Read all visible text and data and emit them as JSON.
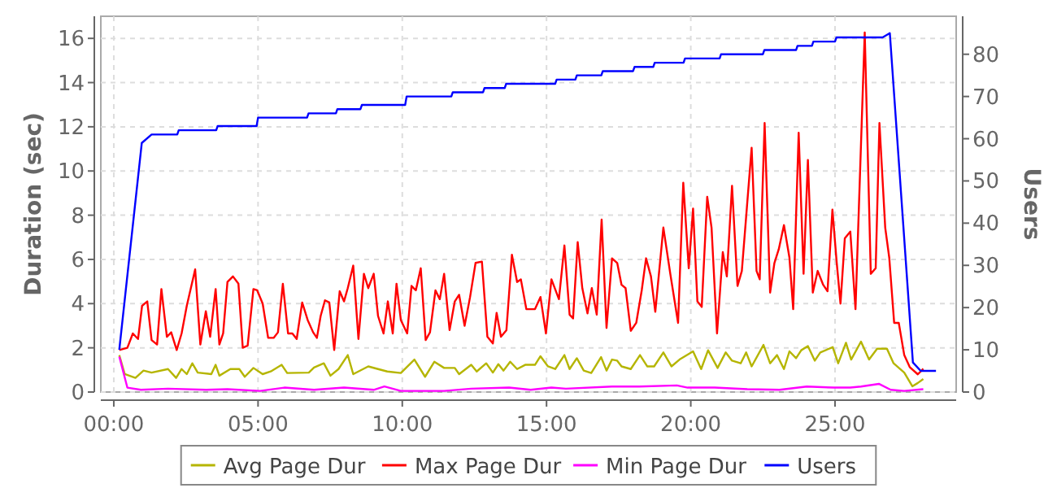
{
  "chart_data": {
    "type": "line",
    "xlabel": null,
    "ylabel": "Duration (sec)",
    "y2label": "Users",
    "xlim": [
      -0.45,
      29.2
    ],
    "xticks": [
      {
        "value": 0,
        "label": "00:00"
      },
      {
        "value": 5,
        "label": "05:00"
      },
      {
        "value": 10,
        "label": "10:00"
      },
      {
        "value": 15,
        "label": "15:00"
      },
      {
        "value": 20,
        "label": "20:00"
      },
      {
        "value": 25,
        "label": "25:00"
      }
    ],
    "ylim": [
      0,
      17
    ],
    "yticks": [
      0,
      2,
      4,
      6,
      8,
      10,
      12,
      14,
      16
    ],
    "y2lim": [
      0,
      89
    ],
    "y2ticks": [
      0,
      10,
      20,
      30,
      40,
      50,
      60,
      70,
      80
    ],
    "grid": true,
    "legend": "bottom",
    "line_style": "solid",
    "series": [
      {
        "name": "Avg Page Dur",
        "color": "#b5b500",
        "x": [
          0.19,
          0.38,
          0.75,
          1.03,
          1.31,
          1.88,
          2.16,
          2.35,
          2.53,
          2.72,
          2.91,
          3.38,
          3.53,
          3.66,
          4.04,
          4.35,
          4.54,
          4.84,
          5.16,
          5.44,
          5.82,
          6.01,
          6.76,
          6.94,
          7.28,
          7.51,
          7.79,
          8.11,
          8.3,
          8.82,
          9.16,
          9.48,
          9.95,
          10.42,
          10.79,
          11.11,
          11.45,
          11.82,
          11.97,
          12.39,
          12.58,
          12.91,
          13.14,
          13.33,
          13.51,
          13.74,
          13.98,
          14.26,
          14.6,
          14.79,
          15.05,
          15.3,
          15.62,
          15.8,
          16.05,
          16.29,
          16.55,
          16.89,
          17.08,
          17.27,
          17.45,
          17.6,
          17.92,
          18.24,
          18.49,
          18.73,
          19.05,
          19.33,
          19.61,
          20.08,
          20.36,
          20.6,
          20.93,
          21.21,
          21.43,
          21.73,
          21.92,
          22.11,
          22.52,
          22.75,
          22.99,
          23.23,
          23.42,
          23.65,
          23.83,
          24.06,
          24.3,
          24.49,
          24.92,
          25.11,
          25.38,
          25.56,
          25.9,
          26.18,
          26.46,
          26.8,
          27.03,
          27.4,
          27.68,
          27.87,
          28.06
        ],
        "values": [
          1.67,
          0.81,
          0.64,
          0.97,
          0.88,
          1.04,
          0.64,
          1.04,
          0.81,
          1.3,
          0.88,
          0.81,
          1.23,
          0.74,
          1.04,
          1.04,
          0.69,
          1.09,
          0.81,
          0.93,
          1.23,
          0.86,
          0.88,
          1.11,
          1.3,
          0.74,
          1.04,
          1.67,
          0.81,
          1.16,
          1.04,
          0.93,
          0.86,
          1.47,
          0.69,
          1.37,
          1.09,
          1.09,
          0.81,
          1.23,
          0.93,
          1.3,
          0.88,
          1.26,
          0.97,
          1.37,
          1.04,
          1.23,
          1.23,
          1.62,
          1.16,
          1.04,
          1.67,
          1.04,
          1.53,
          0.97,
          0.86,
          1.58,
          0.97,
          1.47,
          1.42,
          1.16,
          1.04,
          1.67,
          1.16,
          1.16,
          1.79,
          1.16,
          1.47,
          1.84,
          1.04,
          1.89,
          1.09,
          1.79,
          1.42,
          1.3,
          1.79,
          1.16,
          2.13,
          1.3,
          1.67,
          1.04,
          1.84,
          1.53,
          1.89,
          2.08,
          1.42,
          1.79,
          2.03,
          1.3,
          2.23,
          1.47,
          2.28,
          1.47,
          1.96,
          1.96,
          1.3,
          0.88,
          0.26,
          0.41,
          0.59
        ]
      },
      {
        "name": "Max Page Dur",
        "color": "#ff0000",
        "x": [
          0.19,
          0.47,
          0.66,
          0.84,
          0.98,
          1.16,
          1.31,
          1.5,
          1.65,
          1.84,
          1.99,
          2.18,
          2.35,
          2.53,
          2.82,
          3.0,
          3.19,
          3.34,
          3.53,
          3.66,
          3.79,
          3.94,
          4.13,
          4.32,
          4.47,
          4.64,
          4.84,
          4.97,
          5.16,
          5.35,
          5.54,
          5.69,
          5.86,
          6.04,
          6.19,
          6.34,
          6.53,
          6.72,
          6.91,
          7.04,
          7.17,
          7.32,
          7.47,
          7.64,
          7.83,
          7.98,
          8.11,
          8.3,
          8.48,
          8.67,
          8.82,
          9.01,
          9.16,
          9.35,
          9.5,
          9.67,
          9.8,
          9.95,
          10.17,
          10.32,
          10.47,
          10.64,
          10.81,
          10.96,
          11.15,
          11.3,
          11.45,
          11.64,
          11.82,
          11.97,
          12.16,
          12.35,
          12.54,
          12.76,
          12.95,
          13.14,
          13.27,
          13.42,
          13.61,
          13.8,
          13.98,
          14.11,
          14.3,
          14.6,
          14.79,
          14.98,
          15.17,
          15.43,
          15.62,
          15.8,
          15.92,
          16.08,
          16.24,
          16.42,
          16.57,
          16.74,
          16.91,
          17.08,
          17.27,
          17.45,
          17.6,
          17.74,
          17.92,
          18.11,
          18.3,
          18.45,
          18.62,
          18.77,
          19.05,
          19.29,
          19.56,
          19.74,
          19.93,
          20.08,
          20.23,
          20.38,
          20.57,
          20.72,
          20.91,
          21.11,
          21.25,
          21.43,
          21.62,
          21.77,
          22.11,
          22.28,
          22.39,
          22.56,
          22.75,
          22.9,
          23.05,
          23.23,
          23.42,
          23.55,
          23.74,
          23.91,
          24.06,
          24.23,
          24.4,
          24.59,
          24.74,
          24.91,
          25.06,
          25.19,
          25.34,
          25.53,
          25.71,
          26.03,
          26.24,
          26.41,
          26.54,
          26.74,
          26.88,
          27.05,
          27.21,
          27.4,
          27.59,
          27.87,
          28.06
        ],
        "values": [
          1.9,
          2.0,
          2.65,
          2.4,
          3.9,
          4.1,
          2.35,
          2.15,
          4.66,
          2.5,
          2.7,
          1.9,
          2.65,
          3.9,
          5.55,
          2.15,
          3.65,
          2.5,
          4.66,
          2.15,
          2.65,
          4.98,
          5.23,
          4.9,
          2.0,
          2.1,
          4.66,
          4.6,
          4.0,
          2.45,
          2.45,
          2.7,
          4.9,
          2.65,
          2.65,
          2.4,
          4.05,
          3.26,
          2.7,
          2.45,
          3.44,
          4.15,
          4.05,
          1.9,
          4.56,
          4.1,
          4.7,
          5.72,
          2.4,
          5.35,
          4.7,
          5.35,
          3.44,
          2.65,
          4.1,
          2.65,
          4.9,
          3.26,
          2.65,
          4.8,
          4.6,
          5.6,
          2.35,
          2.7,
          4.6,
          4.2,
          5.35,
          2.8,
          4.1,
          4.4,
          3.0,
          4.3,
          5.84,
          5.9,
          2.5,
          2.2,
          3.58,
          2.5,
          2.8,
          6.21,
          4.98,
          5.1,
          3.75,
          3.75,
          4.3,
          2.65,
          5.1,
          4.2,
          6.63,
          3.5,
          3.33,
          6.78,
          4.7,
          3.56,
          4.7,
          3.5,
          7.8,
          2.9,
          6.05,
          5.84,
          4.85,
          4.7,
          2.77,
          3.13,
          4.6,
          6.05,
          5.23,
          3.63,
          7.44,
          5.35,
          3.13,
          9.47,
          5.6,
          8.3,
          4.1,
          3.85,
          8.83,
          7.44,
          2.65,
          6.33,
          5.23,
          9.33,
          4.8,
          5.48,
          11.05,
          5.48,
          5.1,
          12.17,
          4.5,
          5.84,
          6.46,
          7.55,
          6.08,
          3.75,
          11.73,
          5.35,
          10.5,
          4.5,
          5.48,
          4.85,
          4.56,
          8.25,
          5.84,
          4.0,
          6.95,
          7.26,
          3.75,
          16.27,
          5.35,
          5.6,
          12.17,
          7.44,
          6.08,
          3.13,
          3.13,
          1.67,
          1.13,
          0.8,
          1.05
        ]
      },
      {
        "name": "Min Page Dur",
        "color": "#ff00ff",
        "x": [
          0.19,
          0.47,
          0.94,
          1.88,
          3.19,
          3.94,
          5.07,
          5.91,
          6.94,
          7.98,
          9.01,
          9.38,
          9.95,
          11.45,
          12.39,
          13.7,
          14.45,
          15.17,
          15.67,
          17.27,
          18.21,
          19.52,
          19.89,
          20.83,
          21.96,
          23.08,
          24.02,
          24.96,
          25.53,
          25.9,
          26.52,
          26.93,
          27.4,
          28.06
        ],
        "values": [
          1.6,
          0.2,
          0.1,
          0.15,
          0.1,
          0.13,
          0.05,
          0.2,
          0.1,
          0.2,
          0.1,
          0.25,
          0.05,
          0.05,
          0.15,
          0.2,
          0.1,
          0.2,
          0.15,
          0.25,
          0.25,
          0.3,
          0.2,
          0.2,
          0.13,
          0.1,
          0.25,
          0.2,
          0.2,
          0.25,
          0.37,
          0.1,
          0.05,
          0.13
        ]
      },
      {
        "name": "Users",
        "color": "#0000ff",
        "axis": "y2",
        "x": [
          0.19,
          0.97,
          1.31,
          2.2,
          2.25,
          3.55,
          3.6,
          4.95,
          5.0,
          6.7,
          6.75,
          7.7,
          7.75,
          8.55,
          8.6,
          10.1,
          10.15,
          11.7,
          11.75,
          12.8,
          12.85,
          13.55,
          13.6,
          15.3,
          15.35,
          16.0,
          16.05,
          16.9,
          16.95,
          18.0,
          18.05,
          18.7,
          18.75,
          19.75,
          19.8,
          21.0,
          21.05,
          22.5,
          22.55,
          23.65,
          23.7,
          24.2,
          24.25,
          25.0,
          25.05,
          26.65,
          26.9,
          27.7,
          27.97,
          28.5
        ],
        "values": [
          10,
          59,
          61,
          61,
          62,
          62,
          63,
          63,
          65,
          65,
          66,
          66,
          67,
          67,
          68,
          68,
          70,
          70,
          71,
          71,
          72,
          72,
          73,
          73,
          74,
          74,
          75,
          75,
          76,
          76,
          77,
          77,
          78,
          78,
          79,
          79,
          80,
          80,
          81,
          81,
          82,
          82,
          83,
          83,
          84,
          84,
          85,
          7,
          5,
          5
        ]
      }
    ]
  }
}
